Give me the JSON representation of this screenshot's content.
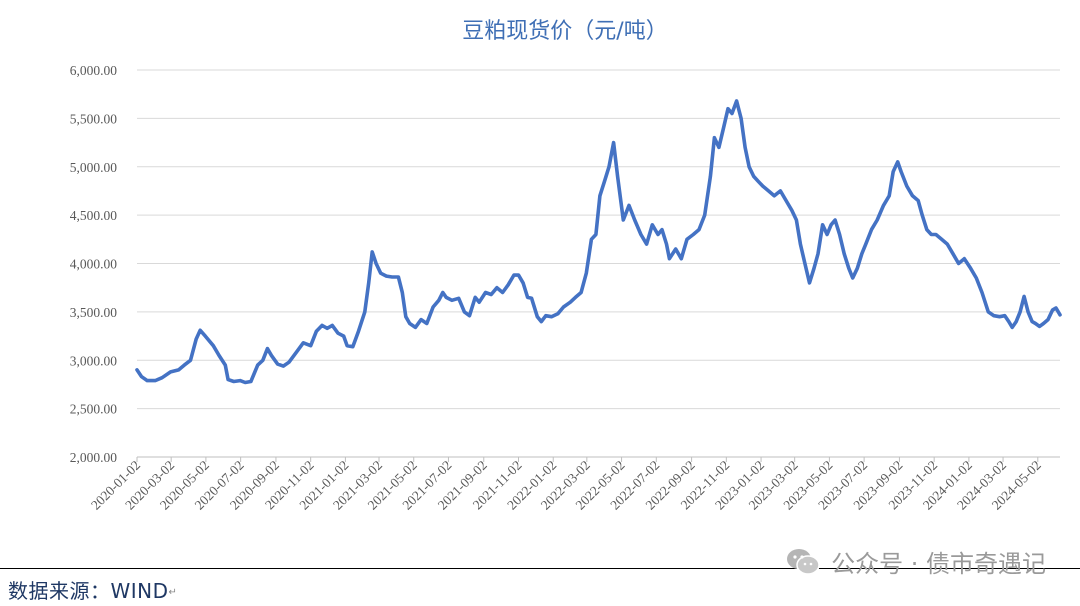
{
  "chart_data": {
    "type": "line",
    "title": "豆粕现货价（元/吨）",
    "xlabel": "",
    "ylabel": "",
    "ylim": [
      2000,
      6000
    ],
    "y_ticks": [
      "2,000.00",
      "2,500.00",
      "3,000.00",
      "3,500.00",
      "4,000.00",
      "4,500.00",
      "5,000.00",
      "5,500.00",
      "6,000.00"
    ],
    "y_tick_values": [
      2000,
      2500,
      3000,
      3500,
      4000,
      4500,
      5000,
      5500,
      6000
    ],
    "x_ticks": [
      "2020-01-02",
      "2020-03-02",
      "2020-05-02",
      "2020-07-02",
      "2020-09-02",
      "2020-11-02",
      "2021-01-02",
      "2021-03-02",
      "2021-05-02",
      "2021-07-02",
      "2021-09-02",
      "2021-11-02",
      "2022-01-02",
      "2022-03-02",
      "2022-05-02",
      "2022-07-02",
      "2022-09-02",
      "2022-11-02",
      "2023-01-02",
      "2023-03-02",
      "2023-05-02",
      "2023-07-02",
      "2023-09-02",
      "2023-11-02",
      "2024-01-02",
      "2024-03-02",
      "2024-05-02"
    ],
    "x_start": "2020-01-02",
    "x_end": "2024-06-10",
    "grid": true,
    "line_color": "#4472c4",
    "series": [
      {
        "points": [
          [
            "2020-01-02",
            2900
          ],
          [
            "2020-01-10",
            2830
          ],
          [
            "2020-01-20",
            2790
          ],
          [
            "2020-02-03",
            2790
          ],
          [
            "2020-02-15",
            2820
          ],
          [
            "2020-03-01",
            2880
          ],
          [
            "2020-03-15",
            2900
          ],
          [
            "2020-03-25",
            2950
          ],
          [
            "2020-04-05",
            3000
          ],
          [
            "2020-04-15",
            3220
          ],
          [
            "2020-04-22",
            3310
          ],
          [
            "2020-05-01",
            3250
          ],
          [
            "2020-05-15",
            3150
          ],
          [
            "2020-05-25",
            3050
          ],
          [
            "2020-06-05",
            2950
          ],
          [
            "2020-06-10",
            2800
          ],
          [
            "2020-06-20",
            2780
          ],
          [
            "2020-07-01",
            2790
          ],
          [
            "2020-07-10",
            2770
          ],
          [
            "2020-07-20",
            2780
          ],
          [
            "2020-08-01",
            2950
          ],
          [
            "2020-08-10",
            3000
          ],
          [
            "2020-08-18",
            3120
          ],
          [
            "2020-08-25",
            3050
          ],
          [
            "2020-09-05",
            2960
          ],
          [
            "2020-09-15",
            2940
          ],
          [
            "2020-09-25",
            2980
          ],
          [
            "2020-10-10",
            3100
          ],
          [
            "2020-10-20",
            3180
          ],
          [
            "2020-11-02",
            3150
          ],
          [
            "2020-11-12",
            3300
          ],
          [
            "2020-11-22",
            3360
          ],
          [
            "2020-12-01",
            3330
          ],
          [
            "2020-12-10",
            3360
          ],
          [
            "2020-12-20",
            3280
          ],
          [
            "2020-12-30",
            3250
          ],
          [
            "2021-01-05",
            3150
          ],
          [
            "2021-01-15",
            3140
          ],
          [
            "2021-01-25",
            3300
          ],
          [
            "2021-02-05",
            3500
          ],
          [
            "2021-02-12",
            3800
          ],
          [
            "2021-02-18",
            4120
          ],
          [
            "2021-02-25",
            4000
          ],
          [
            "2021-03-05",
            3900
          ],
          [
            "2021-03-15",
            3870
          ],
          [
            "2021-03-25",
            3860
          ],
          [
            "2021-04-05",
            3860
          ],
          [
            "2021-04-12",
            3700
          ],
          [
            "2021-04-18",
            3450
          ],
          [
            "2021-04-25",
            3380
          ],
          [
            "2021-05-05",
            3340
          ],
          [
            "2021-05-15",
            3420
          ],
          [
            "2021-05-25",
            3380
          ],
          [
            "2021-06-05",
            3550
          ],
          [
            "2021-06-15",
            3620
          ],
          [
            "2021-06-22",
            3700
          ],
          [
            "2021-06-28",
            3650
          ],
          [
            "2021-07-08",
            3620
          ],
          [
            "2021-07-20",
            3640
          ],
          [
            "2021-07-30",
            3500
          ],
          [
            "2021-08-08",
            3460
          ],
          [
            "2021-08-18",
            3650
          ],
          [
            "2021-08-25",
            3600
          ],
          [
            "2021-09-05",
            3700
          ],
          [
            "2021-09-15",
            3680
          ],
          [
            "2021-09-25",
            3750
          ],
          [
            "2021-10-05",
            3700
          ],
          [
            "2021-10-15",
            3780
          ],
          [
            "2021-10-25",
            3880
          ],
          [
            "2021-11-02",
            3880
          ],
          [
            "2021-11-10",
            3800
          ],
          [
            "2021-11-18",
            3650
          ],
          [
            "2021-11-25",
            3640
          ],
          [
            "2021-12-05",
            3450
          ],
          [
            "2021-12-12",
            3400
          ],
          [
            "2021-12-20",
            3460
          ],
          [
            "2021-12-30",
            3450
          ],
          [
            "2022-01-10",
            3480
          ],
          [
            "2022-01-20",
            3550
          ],
          [
            "2022-02-01",
            3600
          ],
          [
            "2022-02-10",
            3650
          ],
          [
            "2022-02-20",
            3700
          ],
          [
            "2022-03-01",
            3900
          ],
          [
            "2022-03-10",
            4250
          ],
          [
            "2022-03-18",
            4300
          ],
          [
            "2022-03-25",
            4700
          ],
          [
            "2022-04-02",
            4850
          ],
          [
            "2022-04-10",
            5000
          ],
          [
            "2022-04-18",
            5250
          ],
          [
            "2022-04-25",
            4900
          ],
          [
            "2022-05-05",
            4450
          ],
          [
            "2022-05-15",
            4600
          ],
          [
            "2022-05-25",
            4450
          ],
          [
            "2022-06-05",
            4300
          ],
          [
            "2022-06-15",
            4200
          ],
          [
            "2022-06-25",
            4400
          ],
          [
            "2022-07-05",
            4300
          ],
          [
            "2022-07-12",
            4350
          ],
          [
            "2022-07-20",
            4200
          ],
          [
            "2022-07-25",
            4050
          ],
          [
            "2022-08-05",
            4150
          ],
          [
            "2022-08-15",
            4050
          ],
          [
            "2022-08-25",
            4250
          ],
          [
            "2022-09-05",
            4300
          ],
          [
            "2022-09-15",
            4350
          ],
          [
            "2022-09-25",
            4500
          ],
          [
            "2022-10-05",
            4900
          ],
          [
            "2022-10-12",
            5300
          ],
          [
            "2022-10-20",
            5200
          ],
          [
            "2022-10-28",
            5400
          ],
          [
            "2022-11-05",
            5600
          ],
          [
            "2022-11-12",
            5550
          ],
          [
            "2022-11-20",
            5680
          ],
          [
            "2022-11-28",
            5500
          ],
          [
            "2022-12-05",
            5200
          ],
          [
            "2022-12-12",
            5000
          ],
          [
            "2022-12-20",
            4900
          ],
          [
            "2022-12-28",
            4850
          ],
          [
            "2023-01-05",
            4800
          ],
          [
            "2023-01-15",
            4750
          ],
          [
            "2023-01-25",
            4700
          ],
          [
            "2023-02-05",
            4750
          ],
          [
            "2023-02-15",
            4650
          ],
          [
            "2023-02-25",
            4550
          ],
          [
            "2023-03-05",
            4450
          ],
          [
            "2023-03-12",
            4200
          ],
          [
            "2023-03-20",
            4000
          ],
          [
            "2023-03-28",
            3800
          ],
          [
            "2023-04-05",
            3950
          ],
          [
            "2023-04-12",
            4100
          ],
          [
            "2023-04-20",
            4400
          ],
          [
            "2023-04-28",
            4300
          ],
          [
            "2023-05-05",
            4400
          ],
          [
            "2023-05-12",
            4450
          ],
          [
            "2023-05-20",
            4300
          ],
          [
            "2023-05-28",
            4100
          ],
          [
            "2023-06-05",
            3950
          ],
          [
            "2023-06-12",
            3850
          ],
          [
            "2023-06-20",
            3950
          ],
          [
            "2023-06-28",
            4100
          ],
          [
            "2023-07-05",
            4200
          ],
          [
            "2023-07-15",
            4350
          ],
          [
            "2023-07-25",
            4450
          ],
          [
            "2023-08-05",
            4600
          ],
          [
            "2023-08-15",
            4700
          ],
          [
            "2023-08-22",
            4950
          ],
          [
            "2023-08-30",
            5050
          ],
          [
            "2023-09-05",
            4950
          ],
          [
            "2023-09-15",
            4800
          ],
          [
            "2023-09-25",
            4700
          ],
          [
            "2023-10-05",
            4650
          ],
          [
            "2023-10-12",
            4500
          ],
          [
            "2023-10-20",
            4350
          ],
          [
            "2023-10-28",
            4300
          ],
          [
            "2023-11-05",
            4300
          ],
          [
            "2023-11-15",
            4250
          ],
          [
            "2023-11-25",
            4200
          ],
          [
            "2023-12-05",
            4100
          ],
          [
            "2023-12-15",
            4000
          ],
          [
            "2023-12-25",
            4050
          ],
          [
            "2024-01-05",
            3950
          ],
          [
            "2024-01-15",
            3850
          ],
          [
            "2024-01-25",
            3700
          ],
          [
            "2024-02-05",
            3500
          ],
          [
            "2024-02-15",
            3460
          ],
          [
            "2024-02-25",
            3450
          ],
          [
            "2024-03-05",
            3460
          ],
          [
            "2024-03-12",
            3400
          ],
          [
            "2024-03-18",
            3340
          ],
          [
            "2024-03-25",
            3400
          ],
          [
            "2024-04-01",
            3500
          ],
          [
            "2024-04-08",
            3660
          ],
          [
            "2024-04-15",
            3500
          ],
          [
            "2024-04-22",
            3400
          ],
          [
            "2024-04-28",
            3380
          ],
          [
            "2024-05-05",
            3350
          ],
          [
            "2024-05-12",
            3380
          ],
          [
            "2024-05-20",
            3420
          ],
          [
            "2024-05-28",
            3520
          ],
          [
            "2024-06-03",
            3540
          ],
          [
            "2024-06-10",
            3470
          ]
        ]
      }
    ]
  },
  "footer": {
    "source": "数据来源：WIND",
    "source_mark": "↵",
    "watermark": "公众号 · 债市奇遇记",
    "watermark_icon": "wechat-icon"
  }
}
